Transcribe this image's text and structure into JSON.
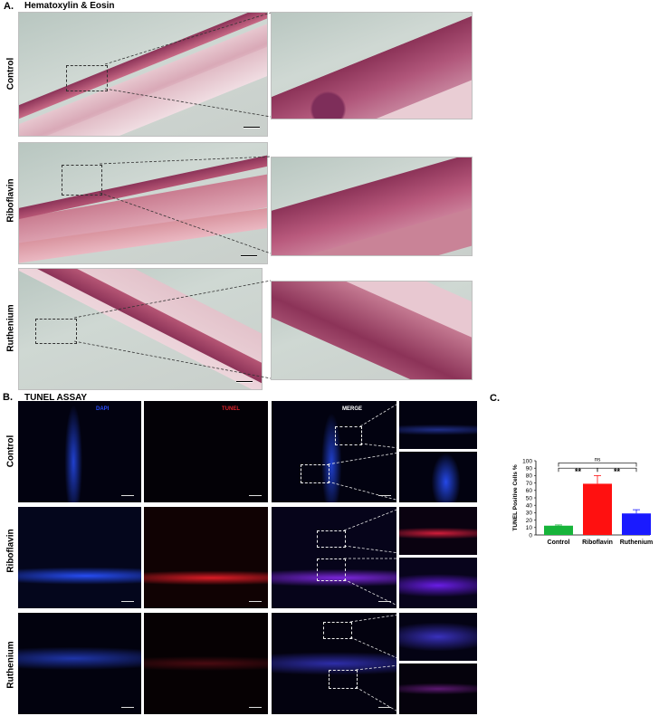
{
  "panel_a": {
    "letter": "A.",
    "title": "Hematoxylin & Eosin",
    "rows": [
      "Control",
      "Riboflavin",
      "Ruthenium"
    ]
  },
  "panel_b": {
    "letter": "B.",
    "title": "TUNEL ASSAY",
    "channels": [
      "DAPI",
      "TUNEL",
      "MERGE"
    ],
    "rows": [
      "Control",
      "Riboflavin",
      "Ruthenium"
    ]
  },
  "panel_c": {
    "letter": "C."
  },
  "colors": {
    "he_pink": "#c86a86",
    "he_dark": "#8c3358",
    "dapi_blue": "#2a4dff",
    "tunel_red": "#e0242c",
    "bar_control": "#17b43a",
    "bar_riboflavin": "#ff1010",
    "bar_ruthenium": "#1a1aff"
  },
  "chart_data": {
    "type": "bar",
    "categories": [
      "Control",
      "Riboflavin",
      "Ruthenium"
    ],
    "values": [
      12.5,
      69,
      29
    ],
    "errors": [
      1,
      11,
      5
    ],
    "ylabel": "TUNEL Positive Cells %",
    "ylim": [
      0,
      100
    ],
    "yticks": [
      "0",
      "10",
      "20",
      "30",
      "40",
      "50",
      "60",
      "70",
      "80",
      "90",
      "100"
    ],
    "annotations": [
      {
        "from": "Control",
        "to": "Ruthenium",
        "label": "ns"
      },
      {
        "from": "Control",
        "to": "Riboflavin",
        "label": "**"
      },
      {
        "from": "Riboflavin",
        "to": "Ruthenium",
        "label": "**"
      }
    ],
    "grid": false
  }
}
